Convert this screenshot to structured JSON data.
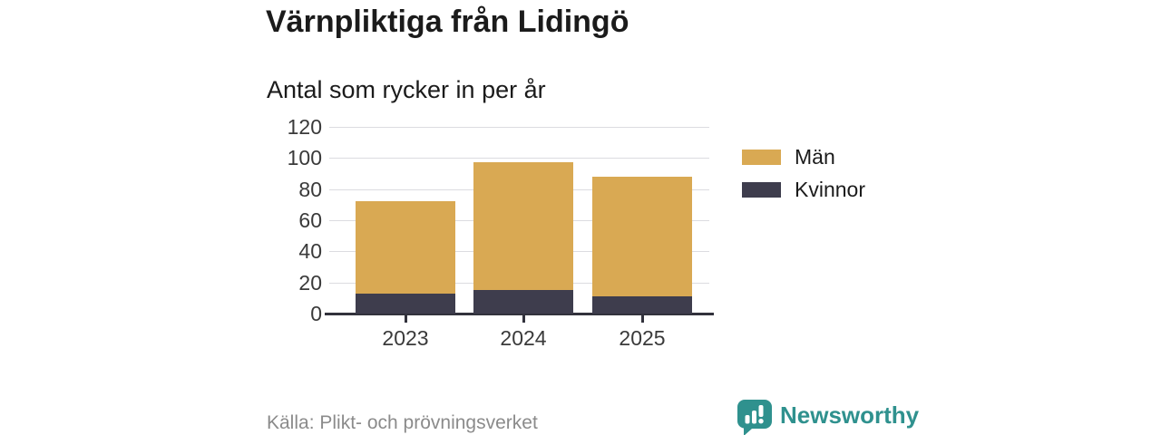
{
  "header": {
    "title": "Värnpliktiga från Lidingö",
    "subtitle": "Antal som rycker in per år"
  },
  "chart_data": {
    "type": "bar",
    "stacked": true,
    "title": "Värnpliktiga från Lidingö",
    "subtitle": "Antal som rycker in per år",
    "categories": [
      "2023",
      "2024",
      "2025"
    ],
    "series": [
      {
        "name": "Män",
        "color": "#D9A953",
        "values": [
          59,
          82,
          77
        ]
      },
      {
        "name": "Kvinnor",
        "color": "#3E3D4D",
        "values": [
          13,
          15,
          11
        ]
      }
    ],
    "stack_totals": [
      72,
      97,
      88
    ],
    "xlabel": "",
    "ylabel": "",
    "ylim": [
      0,
      120
    ],
    "yticks": [
      0,
      20,
      40,
      60,
      80,
      100,
      120
    ],
    "grid": true,
    "legend_position": "right"
  },
  "style": {
    "grid_color": "#dcdce0",
    "axis_color": "#32323c",
    "tick_text_color": "#3a3a3a",
    "gold": "#D9A953",
    "dark": "#3E3D4D",
    "brand_teal": "#2F918E"
  },
  "footer": {
    "source": "Källa: Plikt- och prövningsverket",
    "brand": "Newsworthy",
    "logo_icon": "bar-chart-speech-bubble-icon"
  }
}
